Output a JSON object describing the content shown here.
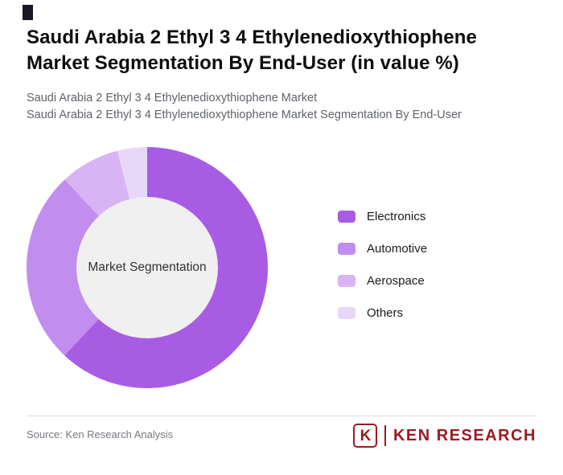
{
  "header": {
    "title_lines": [
      "Saudi Arabia 2 Ethyl 3 4 Ethylenedioxythiophene",
      "Market Segmentation By End-User (in value %)"
    ],
    "subtitle_lines": [
      "Saudi Arabia 2 Ethyl 3 4 Ethylenedioxythiophene Market",
      "Saudi Arabia 2 Ethyl 3 4 Ethylenedioxythiophene Market Segmentation By End-User"
    ]
  },
  "chart_data": {
    "type": "pie",
    "donut": true,
    "title": "Saudi Arabia 2 Ethyl 3 4 Ethylenedioxythiophene Market Segmentation By End-User (in value %)",
    "center_label": "Market Segmentation",
    "start_angle_deg": 0,
    "direction": "clockwise",
    "legend_position": "right",
    "inner_circle_color": "#f0f0f0",
    "segments": [
      {
        "label": "Electronics",
        "value": 62,
        "color": "#a85ce4"
      },
      {
        "label": "Automotive",
        "value": 26,
        "color": "#c18dee"
      },
      {
        "label": "Aerospace",
        "value": 8,
        "color": "#d9b4f5"
      },
      {
        "label": "Others",
        "value": 4,
        "color": "#e9d7fa"
      }
    ]
  },
  "footer": {
    "source_text": "Source: Ken Research Analysis",
    "logo": {
      "k": "K",
      "text": "KEN RESEARCH",
      "color": "#9c1b20"
    }
  }
}
